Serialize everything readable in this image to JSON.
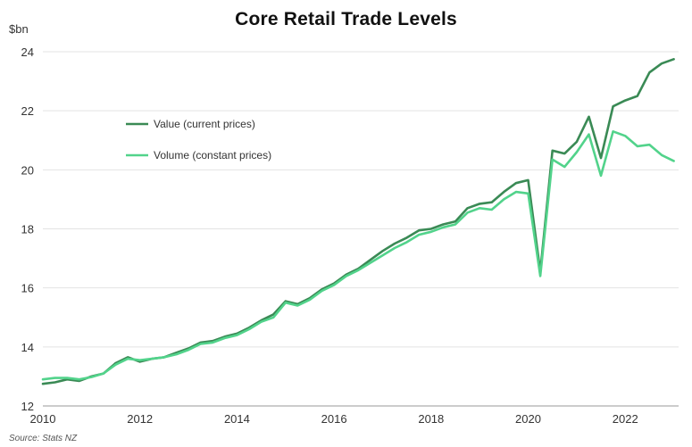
{
  "chart_data": {
    "type": "line",
    "title": "Core Retail Trade Levels",
    "ylabel": "$bn",
    "source": "Source: Stats NZ",
    "ylim": [
      12,
      24
    ],
    "xlim": [
      2010,
      2023.1
    ],
    "yticks": [
      12,
      14,
      16,
      18,
      20,
      22,
      24
    ],
    "xticks": [
      2010,
      2012,
      2014,
      2016,
      2018,
      2020,
      2022
    ],
    "grid": true,
    "legend_position": "top-left",
    "x": [
      2010.0,
      2010.25,
      2010.5,
      2010.75,
      2011.0,
      2011.25,
      2011.5,
      2011.75,
      2012.0,
      2012.25,
      2012.5,
      2012.75,
      2013.0,
      2013.25,
      2013.5,
      2013.75,
      2014.0,
      2014.25,
      2014.5,
      2014.75,
      2015.0,
      2015.25,
      2015.5,
      2015.75,
      2016.0,
      2016.25,
      2016.5,
      2016.75,
      2017.0,
      2017.25,
      2017.5,
      2017.75,
      2018.0,
      2018.25,
      2018.5,
      2018.75,
      2019.0,
      2019.25,
      2019.5,
      2019.75,
      2020.0,
      2020.25,
      2020.5,
      2020.75,
      2021.0,
      2021.25,
      2021.5,
      2021.75,
      2022.0,
      2022.25,
      2022.5,
      2022.75,
      2023.0
    ],
    "series": [
      {
        "name": "Value (current prices)",
        "color": "#3a8a55",
        "values": [
          12.75,
          12.8,
          12.9,
          12.85,
          13.0,
          13.1,
          13.45,
          13.65,
          13.5,
          13.6,
          13.65,
          13.8,
          13.95,
          14.15,
          14.2,
          14.35,
          14.45,
          14.65,
          14.9,
          15.1,
          15.55,
          15.45,
          15.65,
          15.95,
          16.15,
          16.45,
          16.65,
          16.95,
          17.25,
          17.5,
          17.7,
          17.95,
          18.0,
          18.15,
          18.25,
          18.7,
          18.85,
          18.9,
          19.25,
          19.55,
          19.65,
          16.55,
          20.65,
          20.55,
          20.95,
          21.8,
          20.4,
          22.15,
          22.35,
          22.5,
          23.3,
          23.6,
          23.75
        ]
      },
      {
        "name": "Volume (constant prices)",
        "color": "#52d38b",
        "values": [
          12.9,
          12.95,
          12.95,
          12.9,
          12.98,
          13.1,
          13.4,
          13.6,
          13.55,
          13.6,
          13.65,
          13.75,
          13.9,
          14.1,
          14.15,
          14.3,
          14.4,
          14.6,
          14.85,
          15.0,
          15.5,
          15.4,
          15.6,
          15.9,
          16.1,
          16.4,
          16.6,
          16.85,
          17.1,
          17.35,
          17.55,
          17.8,
          17.9,
          18.05,
          18.15,
          18.55,
          18.7,
          18.65,
          19.0,
          19.25,
          19.2,
          16.4,
          20.35,
          20.1,
          20.6,
          21.2,
          19.8,
          21.3,
          21.15,
          20.8,
          20.85,
          20.5,
          20.3
        ]
      }
    ]
  }
}
